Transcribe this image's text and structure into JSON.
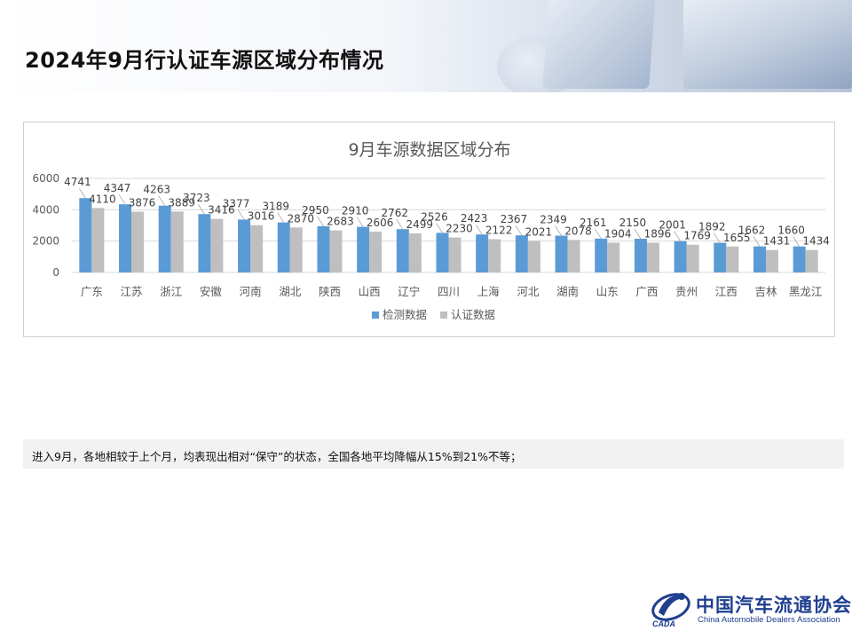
{
  "page": {
    "title": "2024年9月行认证车源区域分布情况"
  },
  "note": {
    "text": "进入9月，各地相较于上个月，均表现出相对“保守”的状态，全国各地平均降幅从15%到21%不等；"
  },
  "logo": {
    "cn": "中国汽车流通协会",
    "en": "China Automobile Dealers Association",
    "mark_text": "CADA"
  },
  "colors": {
    "series1": "#5b9bd5",
    "series2": "#bfbfbf",
    "title": "#595959",
    "axis_text": "#595959"
  },
  "chart_data": {
    "type": "bar",
    "title": "9月车源数据区域分布",
    "categories": [
      "广东",
      "江苏",
      "浙江",
      "安徽",
      "河南",
      "湖北",
      "陕西",
      "山西",
      "辽宁",
      "四川",
      "上海",
      "河北",
      "湖南",
      "山东",
      "广西",
      "贵州",
      "江西",
      "吉林",
      "黑龙江"
    ],
    "series": [
      {
        "name": "检测数据",
        "values": [
          4741,
          4347,
          4263,
          3723,
          3377,
          3189,
          2950,
          2910,
          2762,
          2526,
          2423,
          2367,
          2349,
          2161,
          2150,
          2001,
          1892,
          1662,
          1660
        ]
      },
      {
        "name": "认证数据",
        "values": [
          4110,
          3876,
          3889,
          3416,
          3016,
          2870,
          2683,
          2606,
          2499,
          2230,
          2122,
          2021,
          2078,
          1904,
          1896,
          1769,
          1655,
          1431,
          1434
        ]
      }
    ],
    "y_ticks": [
      "0",
      "2000",
      "4000",
      "6000"
    ],
    "ylim": [
      0,
      6000
    ],
    "grid": true,
    "legend": "bottom",
    "xlabel": "",
    "ylabel": ""
  }
}
